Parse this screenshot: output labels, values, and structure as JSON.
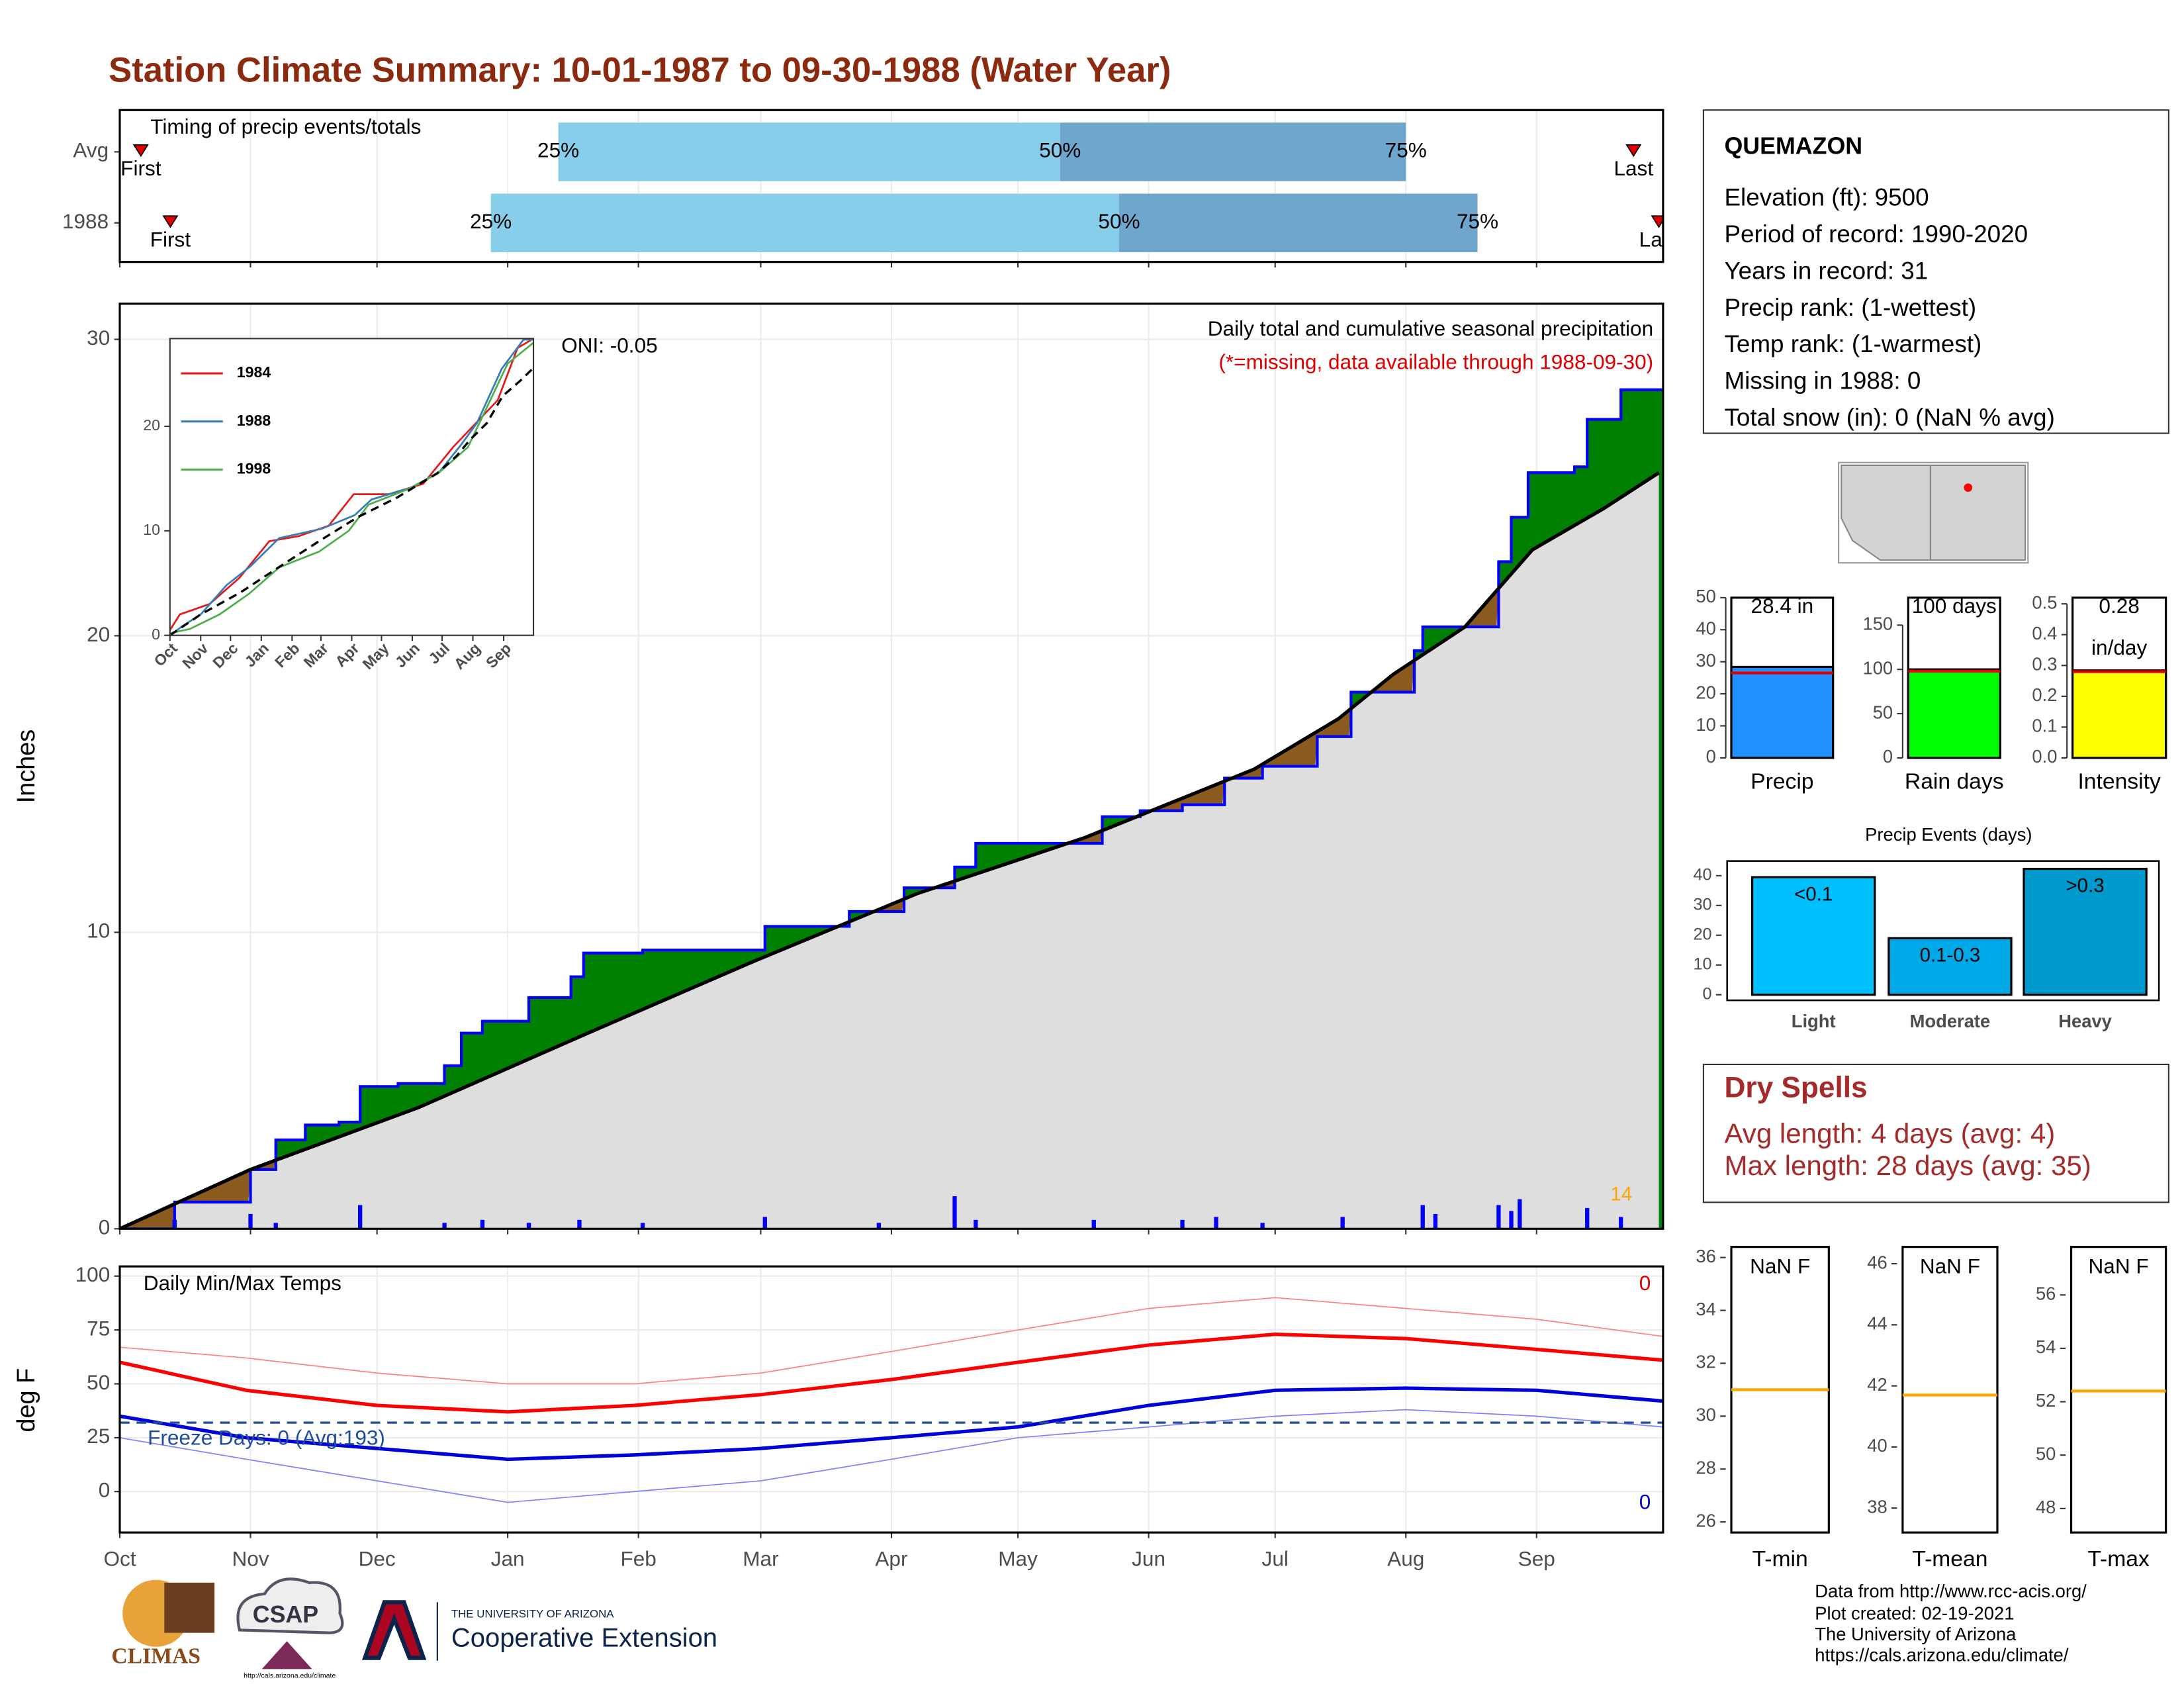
{
  "title": "Station Climate Summary: 10-01-1987 to 09-30-1988 (Water Year)",
  "station": {
    "name": "QUEMAZON",
    "lines": [
      "Elevation (ft): 9500",
      "Period of record: 1990-2020",
      "Years in record: 31",
      "Precip rank:  (1-wettest)",
      "Temp rank:  (1-warmest)",
      "Missing in 1988: 0",
      "Total snow (in): 0 (NaN % avg)"
    ]
  },
  "dry_spells": {
    "title": "Dry Spells",
    "lines": [
      "Avg length: 4 days (avg: 4)",
      "Max length: 28 days (avg: 35)"
    ]
  },
  "footer": [
    "Data from http://www.rcc-acis.org/",
    "Plot created: 02-19-2021",
    "The University of Arizona",
    "https://cals.arizona.edu/climate/"
  ],
  "logos": {
    "climas": "CLIMAS",
    "csap": "CSAP",
    "csap_url": "http://cals.arizona.edu/climate",
    "ua": "THE UNIVERSITY OF ARIZONA",
    "coop": "Cooperative Extension"
  },
  "chart_data": [
    {
      "type": "timing",
      "title": "Timing of precip events/totals",
      "categories": [
        "Avg",
        "1988"
      ],
      "first": [
        5,
        12
      ],
      "q25": [
        104,
        88
      ],
      "q50": [
        223,
        237
      ],
      "q75": [
        305,
        322
      ],
      "last": [
        359,
        365
      ],
      "first_label": "First",
      "last_label": "Last",
      "q25_label": "25%",
      "q50_label": "50%",
      "q75_label": "75%",
      "colors": [
        "#87ceeb",
        "#6ea6cd"
      ],
      "marker_color": "#e00000",
      "xlim": [
        0,
        366
      ],
      "xticks": [
        0,
        31,
        61,
        92,
        123,
        152,
        183,
        213,
        244,
        274,
        305,
        336
      ]
    },
    {
      "type": "cumulative",
      "title": "Daily total and cumulative seasonal precipitation",
      "subtitle": "(*=missing, data available through 1988-09-30)",
      "annotation": "ONI: -0.05",
      "count_label": "14",
      "ylabel": "Inches",
      "xlim": [
        0,
        366
      ],
      "xticks": [
        0,
        31,
        61,
        92,
        123,
        152,
        183,
        213,
        244,
        274,
        305,
        336
      ],
      "ylim": [
        0,
        31.2
      ],
      "yticks": [
        0,
        10,
        20,
        30
      ],
      "grid": true,
      "above_color": "#008000",
      "below_color": "#8b5a1e",
      "base_color": "#dedede",
      "series": [
        {
          "color": "#0000ff",
          "x": [
            0,
            13,
            31,
            37,
            44,
            52,
            57,
            66,
            77,
            81,
            86,
            97,
            107,
            110,
            124,
            153,
            173,
            186,
            198,
            203,
            233,
            242,
            252,
            262,
            271,
            284,
            292,
            307,
            309,
            327,
            330,
            334,
            345,
            348,
            356,
            366
          ],
          "values": [
            0,
            0.9,
            2.0,
            3.0,
            3.5,
            3.6,
            4.8,
            4.9,
            5.5,
            6.6,
            7.0,
            7.8,
            8.5,
            9.3,
            9.4,
            10.2,
            10.7,
            11.5,
            12.2,
            13.0,
            13.9,
            14.1,
            14.3,
            15.2,
            15.6,
            16.6,
            18.1,
            19.5,
            20.3,
            22.5,
            24.0,
            25.5,
            25.7,
            27.3,
            28.3,
            28.3
          ]
        },
        {
          "color": "#000000",
          "x": [
            0,
            31,
            71,
            111,
            150,
            189,
            229,
            269,
            289,
            302,
            319,
            335,
            352,
            365
          ],
          "values": [
            0,
            2.0,
            4.1,
            6.6,
            9.0,
            11.3,
            13.2,
            15.5,
            17.2,
            18.7,
            20.3,
            22.9,
            24.3,
            25.5
          ]
        }
      ],
      "daily": {
        "color": "#0000ff",
        "x": [
          13,
          31,
          37,
          57,
          77,
          86,
          97,
          109,
          124,
          153,
          180,
          198,
          203,
          231,
          252,
          260,
          271,
          290,
          309,
          312,
          327,
          330,
          332,
          348,
          356
        ],
        "values": [
          0.3,
          0.5,
          0.2,
          0.8,
          0.2,
          0.3,
          0.2,
          0.3,
          0.2,
          0.4,
          0.2,
          1.1,
          0.3,
          0.3,
          0.3,
          0.4,
          0.2,
          0.4,
          0.8,
          0.5,
          0.8,
          0.6,
          1.0,
          0.7,
          0.4
        ]
      }
    },
    {
      "type": "line",
      "xlim": [
        0,
        366
      ],
      "xticks": [
        {
          "value": 0,
          "label": "Oct"
        },
        {
          "value": 31,
          "label": "Nov"
        },
        {
          "value": 61,
          "label": "Dec"
        },
        {
          "value": 92,
          "label": "Jan"
        },
        {
          "value": 123,
          "label": "Feb"
        },
        {
          "value": 152,
          "label": "Mar"
        },
        {
          "value": 183,
          "label": "Apr"
        },
        {
          "value": 213,
          "label": "May"
        },
        {
          "value": 244,
          "label": "Jun"
        },
        {
          "value": 274,
          "label": "Jul"
        },
        {
          "value": 305,
          "label": "Aug"
        },
        {
          "value": 336,
          "label": "Sep"
        }
      ],
      "ylim": [
        0,
        28.4
      ],
      "yticks": [
        0,
        10,
        20
      ],
      "series": [
        {
          "name": "1984",
          "color": "#e41a1c",
          "x": [
            0,
            10,
            40,
            70,
            100,
            130,
            160,
            185,
            220,
            255,
            285,
            310,
            330,
            350,
            366
          ],
          "values": [
            0.5,
            2.0,
            3.0,
            5.5,
            9.0,
            9.5,
            10.5,
            13.5,
            13.5,
            14.5,
            18.0,
            20.5,
            22.5,
            27.5,
            28.4
          ]
        },
        {
          "name": "1988",
          "color": "#377eb8",
          "x": [
            0,
            13,
            31,
            57,
            81,
            110,
            153,
            186,
            203,
            242,
            271,
            292,
            309,
            334,
            356,
            366
          ],
          "values": [
            0,
            0.9,
            2.0,
            4.8,
            6.6,
            9.3,
            10.2,
            11.5,
            13.0,
            14.1,
            15.6,
            18.1,
            20.3,
            25.5,
            28.3,
            28.3
          ]
        },
        {
          "name": "1998",
          "color": "#4daf4a",
          "x": [
            0,
            20,
            50,
            80,
            110,
            150,
            180,
            200,
            240,
            270,
            300,
            320,
            340,
            366
          ],
          "values": [
            0.2,
            0.6,
            2.0,
            4.0,
            6.5,
            8.0,
            10.0,
            12.5,
            14.0,
            15.5,
            18.0,
            22.0,
            26.0,
            28.0
          ]
        },
        {
          "color": "#000000",
          "dash": true,
          "x": [
            0,
            31,
            71,
            111,
            150,
            189,
            229,
            269,
            289,
            302,
            319,
            335,
            352,
            365
          ],
          "values": [
            0,
            2.0,
            4.1,
            6.6,
            9.0,
            11.3,
            13.2,
            15.5,
            17.2,
            18.7,
            20.3,
            22.9,
            24.3,
            25.5
          ]
        }
      ]
    },
    {
      "type": "temps",
      "title": "Daily Min/Max Temps",
      "freeze_label": "Freeze Days: 0 (Avg:193)",
      "max_count": "0",
      "min_count": "0",
      "ylabel": "deg F",
      "xlim": [
        0,
        366
      ],
      "xticks": [
        {
          "value": 0,
          "label": "Oct"
        },
        {
          "value": 31,
          "label": "Nov"
        },
        {
          "value": 61,
          "label": "Dec"
        },
        {
          "value": 92,
          "label": "Jan"
        },
        {
          "value": 123,
          "label": "Feb"
        },
        {
          "value": 152,
          "label": "Mar"
        },
        {
          "value": 183,
          "label": "Apr"
        },
        {
          "value": 213,
          "label": "May"
        },
        {
          "value": 244,
          "label": "Jun"
        },
        {
          "value": 274,
          "label": "Jul"
        },
        {
          "value": 305,
          "label": "Aug"
        },
        {
          "value": 336,
          "label": "Sep"
        }
      ],
      "ylim": [
        -19,
        104.5
      ],
      "yticks": [
        0,
        25,
        50,
        75,
        100
      ],
      "grid": true,
      "freeze_line": 32,
      "x": [
        0,
        30,
        61,
        92,
        122,
        152,
        183,
        213,
        244,
        274,
        305,
        336,
        366
      ],
      "series": [
        {
          "color": "#ff8080",
          "width": 0.8,
          "values": [
            67,
            62,
            55,
            50,
            50,
            55,
            65,
            75,
            85,
            90,
            85,
            80,
            72
          ]
        },
        {
          "color": "#8080ff",
          "width": 0.8,
          "values": [
            25,
            15,
            5,
            -5,
            0,
            5,
            15,
            25,
            30,
            35,
            38,
            35,
            30
          ]
        },
        {
          "color": "#ff0000",
          "width": 2.5,
          "values": [
            60,
            47,
            40,
            37,
            40,
            45,
            52,
            60,
            68,
            73,
            71,
            66,
            61
          ]
        },
        {
          "color": "#0000dd",
          "width": 2.5,
          "values": [
            35,
            25,
            20,
            15,
            17,
            20,
            25,
            30,
            40,
            47,
            48,
            47,
            42
          ]
        }
      ]
    },
    {
      "type": "gauge",
      "label": "Precip",
      "value": 28.4,
      "value_label": "28.4 in",
      "avg": 26.5,
      "color": "#1e90ff",
      "ylim": [
        0,
        50
      ],
      "yticks": [
        0,
        10,
        20,
        30,
        40,
        50
      ]
    },
    {
      "type": "gauge",
      "label": "Rain days",
      "value": 100,
      "value_label": "100 days",
      "avg": 98,
      "color": "#00ff00",
      "ylim": [
        0,
        181
      ],
      "yticks": [
        0,
        50,
        100,
        150
      ]
    },
    {
      "type": "gauge",
      "label": "Intensity",
      "value": 0.284,
      "value_label": "0.28",
      "unit_label": "in/day",
      "avg": 0.28,
      "color": "#ffff00",
      "ylim": [
        0,
        0.52
      ],
      "yticks": [
        {
          "value": 0,
          "label": "0.0"
        },
        0.1,
        0.2,
        0.3,
        0.4,
        0.5
      ]
    },
    {
      "type": "bar",
      "title": "Precip Events (days)",
      "categories": [
        "Light",
        "Moderate",
        "Heavy"
      ],
      "values": [
        39.5,
        19,
        42.3
      ],
      "value_labels": [
        "<0.1",
        "0.1-0.3",
        ">0.3"
      ],
      "colors": [
        "#00bfff",
        "#00a8e8",
        "#0099cc"
      ],
      "ylim": [
        0,
        44
      ],
      "yticks": [
        0,
        10,
        20,
        30,
        40
      ]
    },
    {
      "type": "temp_gauge",
      "label": "T-min",
      "value_label": "NaN F",
      "avg": 31,
      "color": "#ffa500",
      "ylim": [
        25.6,
        36.4
      ],
      "yticks": [
        26,
        28,
        30,
        32,
        34,
        36
      ]
    },
    {
      "type": "temp_gauge",
      "label": "T-mean",
      "value_label": "NaN F",
      "avg": 41.7,
      "color": "#ffa500",
      "ylim": [
        37.2,
        46.55
      ],
      "yticks": [
        38,
        40,
        42,
        44,
        46
      ]
    },
    {
      "type": "temp_gauge",
      "label": "T-max",
      "value_label": "NaN F",
      "avg": 52.4,
      "color": "#ffa500",
      "ylim": [
        47.1,
        57.8
      ],
      "yticks": [
        48,
        50,
        52,
        54,
        56
      ]
    }
  ]
}
